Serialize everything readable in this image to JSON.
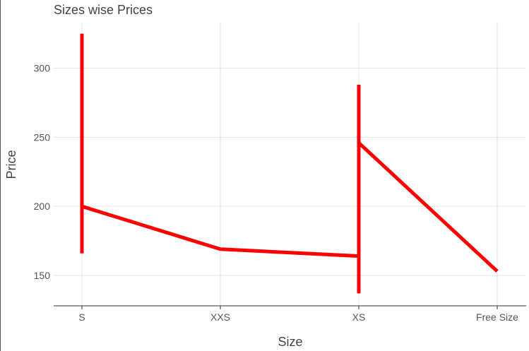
{
  "chart_data": {
    "type": "line",
    "title": "Sizes wise Prices",
    "xlabel": "Size",
    "ylabel": "Price",
    "categories": [
      "S",
      "XXS",
      "XS",
      "Free Size"
    ],
    "ylim": [
      128,
      333
    ],
    "yticks": [
      150,
      200,
      250,
      300
    ],
    "grid": true,
    "color": "#ff0000",
    "path": [
      {
        "x": "S",
        "y": 325
      },
      {
        "x": "S",
        "y": 166
      },
      {
        "x": "S",
        "y": 200
      },
      {
        "x": "XXS",
        "y": 169
      },
      {
        "x": "XS",
        "y": 164
      },
      {
        "x": "XS",
        "y": 137
      },
      {
        "x": "XS",
        "y": 288
      },
      {
        "x": "XS",
        "y": 246
      },
      {
        "x": "Free Size",
        "y": 153
      }
    ]
  }
}
